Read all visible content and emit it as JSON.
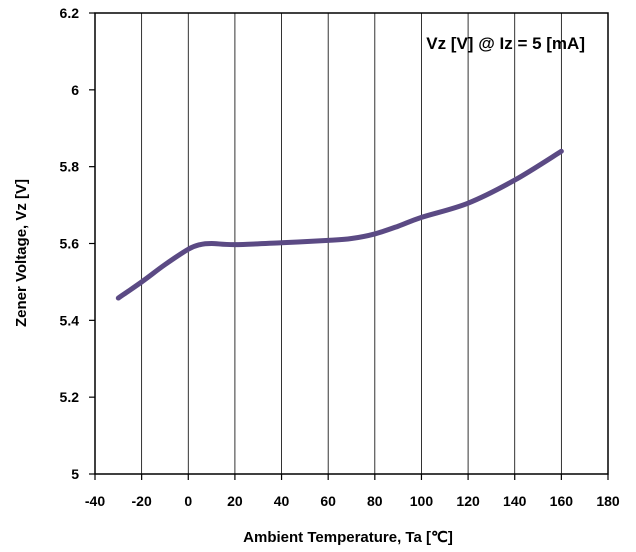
{
  "chart_data": {
    "type": "line",
    "xlabel": "Ambient Temperature, Ta [℃]",
    "ylabel": "Zener Voltage, Vz [V]",
    "annotation": "Vz [V] @ Iz = 5 [mA]",
    "xlim": [
      -40,
      180
    ],
    "ylim": [
      5,
      6.2
    ],
    "xticks": [
      -40,
      -20,
      0,
      20,
      40,
      60,
      80,
      100,
      120,
      140,
      160,
      180
    ],
    "yticks": [
      5,
      5.2,
      5.4,
      5.6,
      5.8,
      6,
      6.2
    ],
    "xtick_labels": [
      "-40",
      "-20",
      "0",
      "20",
      "40",
      "60",
      "80",
      "100",
      "120",
      "140",
      "160",
      "180"
    ],
    "ytick_labels": [
      "5",
      "5.2",
      "5.4",
      "5.6",
      "5.8",
      "6",
      "6.2"
    ],
    "grid": "vertical",
    "series": [
      {
        "color": "#5b4a84",
        "x": [
          -30,
          -20,
          -10,
          0,
          5,
          10,
          20,
          40,
          60,
          70,
          80,
          90,
          100,
          120,
          140,
          160
        ],
        "y": [
          5.458,
          5.5,
          5.545,
          5.585,
          5.597,
          5.6,
          5.597,
          5.602,
          5.608,
          5.613,
          5.625,
          5.645,
          5.668,
          5.705,
          5.765,
          5.84
        ]
      }
    ]
  }
}
